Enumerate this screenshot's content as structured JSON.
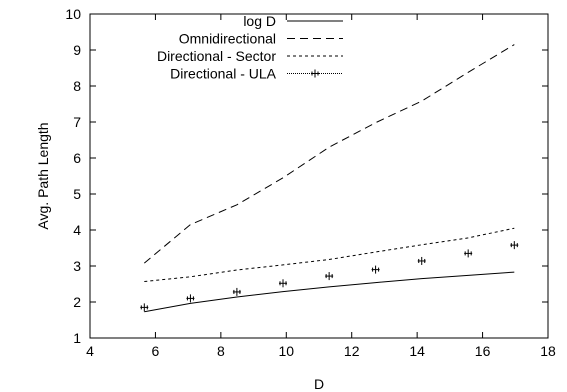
{
  "chart_data": {
    "type": "line",
    "title": "",
    "xlabel": "D",
    "ylabel": "Avg. Path Length",
    "xlim": [
      4,
      18
    ],
    "ylim": [
      1,
      10
    ],
    "xticks": [
      4,
      6,
      8,
      10,
      12,
      14,
      16,
      18
    ],
    "yticks": [
      1,
      2,
      3,
      4,
      5,
      6,
      7,
      8,
      9,
      10
    ],
    "grid": false,
    "legend": "top-left",
    "series": [
      {
        "name": "log D",
        "style": "solid",
        "x": [
          5.66,
          7.07,
          8.49,
          9.9,
          11.31,
          12.73,
          14.14,
          15.56,
          16.97
        ],
        "y": [
          1.73,
          1.96,
          2.14,
          2.29,
          2.42,
          2.54,
          2.65,
          2.74,
          2.83
        ]
      },
      {
        "name": "Omnidirectional",
        "style": "dashed",
        "x": [
          5.66,
          7.07,
          8.49,
          9.9,
          11.31,
          12.73,
          14.14,
          15.56,
          16.97
        ],
        "y": [
          3.08,
          4.15,
          4.7,
          5.45,
          6.3,
          6.98,
          7.58,
          8.38,
          9.15
        ]
      },
      {
        "name": "Directional - Sector",
        "style": "dotted",
        "x": [
          5.66,
          7.07,
          8.49,
          9.9,
          11.31,
          12.73,
          14.14,
          15.56,
          16.97
        ],
        "y": [
          2.57,
          2.7,
          2.89,
          3.03,
          3.18,
          3.39,
          3.59,
          3.78,
          4.05
        ]
      },
      {
        "name": "Directional - ULA",
        "style": "markers",
        "x": [
          5.66,
          7.07,
          8.49,
          9.9,
          11.31,
          12.73,
          14.14,
          15.56,
          16.97
        ],
        "y": [
          1.85,
          2.1,
          2.28,
          2.52,
          2.72,
          2.9,
          3.14,
          3.35,
          3.58
        ]
      }
    ]
  }
}
